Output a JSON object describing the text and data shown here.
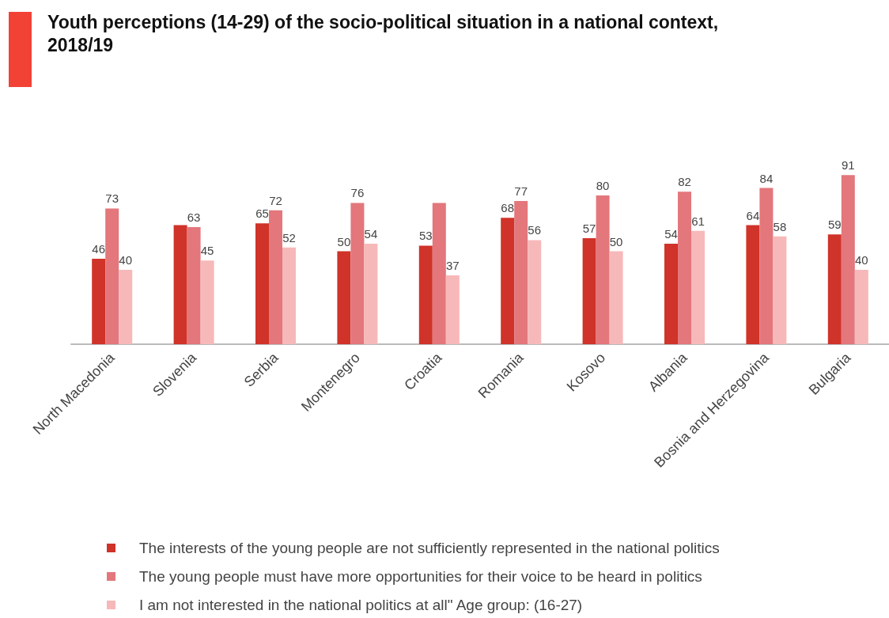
{
  "chart_data": {
    "type": "bar",
    "title": "Youth perceptions (14-29) of the socio-political situation in a national context, 2018/19",
    "categories": [
      "North Macedonia",
      "Slovenia",
      "Serbia",
      "Montenegro",
      "Croatia",
      "Romania",
      "Kosovo",
      "Albania",
      "Bosnia and Herzegovina",
      "Bulgaria"
    ],
    "series": [
      {
        "name": "The interests of the young people are not sufficiently represented in the national politics",
        "color": "#cf3329",
        "values": [
          46,
          64,
          65,
          50,
          53,
          68,
          57,
          54,
          64,
          59
        ],
        "value_labels": [
          "46",
          null,
          "65",
          "50",
          "53",
          "68",
          "57",
          "54",
          "64",
          "59"
        ]
      },
      {
        "name": "The young people must have more opportunities for their voice to be heard in politics",
        "color": "#e3777c",
        "values": [
          73,
          63,
          72,
          76,
          76,
          77,
          80,
          82,
          84,
          91
        ],
        "value_labels": [
          "73",
          "63",
          "72",
          "76",
          null,
          "77",
          "80",
          "82",
          "84",
          "91"
        ]
      },
      {
        "name": "I am not interested in the national politics at all\" Age group: (16-27)",
        "color": "#f7b8b9",
        "values": [
          40,
          45,
          52,
          54,
          37,
          56,
          50,
          61,
          58,
          40
        ],
        "value_labels": [
          "40",
          "45",
          "52",
          "54",
          "37",
          "56",
          "50",
          "61",
          "58",
          "40"
        ]
      }
    ],
    "legend": "bottom",
    "grid": false
  }
}
